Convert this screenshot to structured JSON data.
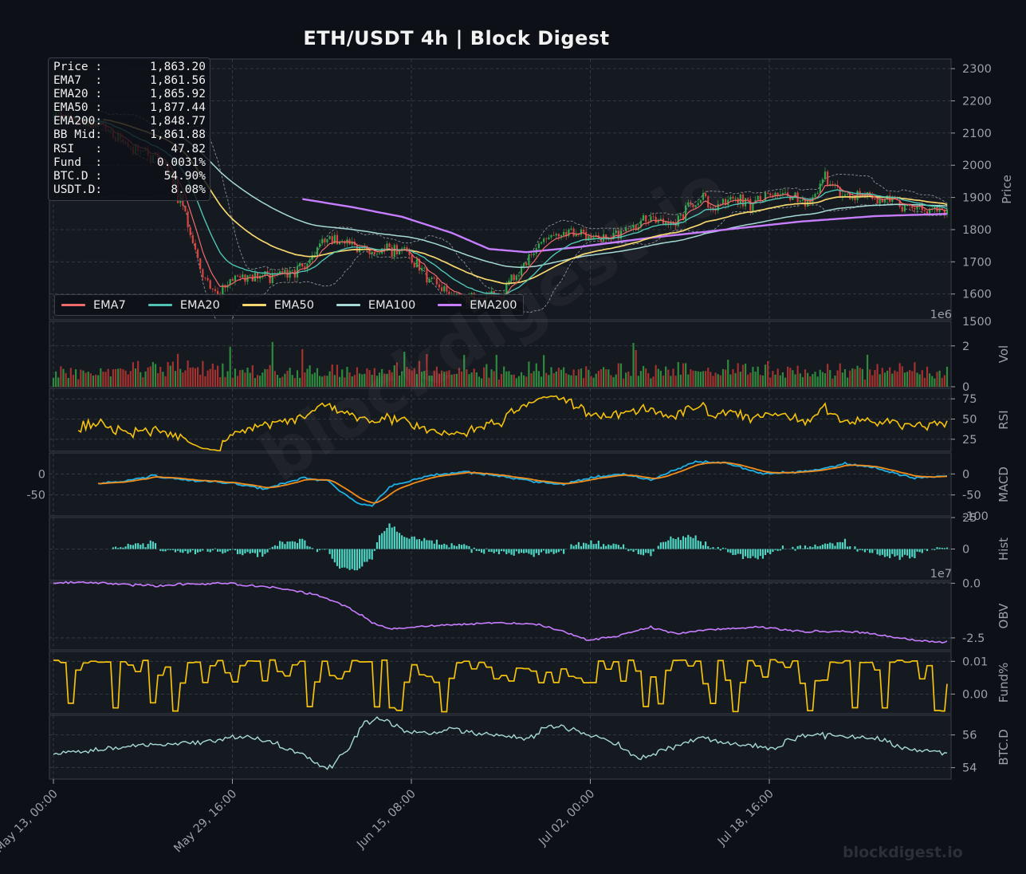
{
  "header": {
    "title": "ETH/USDT  4h  |  Block Digest"
  },
  "infobox": [
    {
      "label": "Price :",
      "value": "1,863.20"
    },
    {
      "label": "EMA7  :",
      "value": "1,861.56"
    },
    {
      "label": "EMA20 :",
      "value": "1,865.92"
    },
    {
      "label": "EMA50 :",
      "value": "1,877.44"
    },
    {
      "label": "EMA200:",
      "value": "1,848.77"
    },
    {
      "label": "BB Mid:",
      "value": "1,861.88"
    },
    {
      "label": "RSI   :",
      "value": "47.82"
    },
    {
      "label": "Fund  :",
      "value": "0.0031%"
    },
    {
      "label": "BTC.D :",
      "value": "54.90%"
    },
    {
      "label": "USDT.D:",
      "value": "8.08%"
    }
  ],
  "legend": [
    {
      "name": "EMA7",
      "color": "#f06a6a"
    },
    {
      "name": "EMA20",
      "color": "#4fc4b4"
    },
    {
      "name": "EMA50",
      "color": "#f5d76e"
    },
    {
      "name": "EMA100",
      "color": "#a6dad6"
    },
    {
      "name": "EMA200",
      "color": "#c77dff"
    }
  ],
  "watermark": "blockdigest.io",
  "brand": "blockdigest.io",
  "chart_data": {
    "type": "line",
    "x_ticks": [
      "May 13, 00:00",
      "May 29, 16:00",
      "Jun 15, 08:00",
      "Jul 02, 00:00",
      "Jul 18, 16:00"
    ],
    "panels": [
      {
        "name": "price",
        "ylabel": "Price",
        "ylim": [
          1520,
          2330
        ],
        "ticks": [
          1600,
          1700,
          1800,
          1900,
          2000,
          2100,
          2200,
          2300
        ],
        "close_anchors": [
          [
            0,
            2150
          ],
          [
            20,
            2120
          ],
          [
            35,
            2040
          ],
          [
            44,
            2010
          ],
          [
            52,
            1880
          ],
          [
            60,
            1650
          ],
          [
            66,
            1600
          ],
          [
            75,
            1660
          ],
          [
            85,
            1650
          ],
          [
            100,
            1680
          ],
          [
            110,
            1780
          ],
          [
            120,
            1750
          ],
          [
            130,
            1730
          ],
          [
            142,
            1730
          ],
          [
            150,
            1650
          ],
          [
            160,
            1600
          ],
          [
            170,
            1580
          ],
          [
            180,
            1600
          ],
          [
            190,
            1700
          ],
          [
            200,
            1780
          ],
          [
            210,
            1790
          ],
          [
            220,
            1770
          ],
          [
            230,
            1800
          ],
          [
            240,
            1830
          ],
          [
            250,
            1820
          ],
          [
            260,
            1900
          ],
          [
            264,
            1860
          ],
          [
            272,
            1900
          ],
          [
            280,
            1880
          ],
          [
            290,
            1920
          ],
          [
            298,
            1900
          ],
          [
            304,
            1890
          ],
          [
            310,
            1960
          ],
          [
            318,
            1900
          ],
          [
            330,
            1900
          ],
          [
            340,
            1880
          ],
          [
            350,
            1860
          ],
          [
            359,
            1863
          ]
        ],
        "ema200_anchors": [
          [
            100,
            1895
          ],
          [
            120,
            1870
          ],
          [
            140,
            1840
          ],
          [
            160,
            1790
          ],
          [
            175,
            1740
          ],
          [
            190,
            1730
          ],
          [
            210,
            1745
          ],
          [
            240,
            1775
          ],
          [
            270,
            1800
          ],
          [
            300,
            1825
          ],
          [
            330,
            1842
          ],
          [
            359,
            1849
          ]
        ],
        "last": {
          "price": 1863.2,
          "ema7": 1861.56,
          "ema20": 1865.92,
          "ema50": 1877.44,
          "ema200": 1848.77,
          "bb_mid": 1861.88
        },
        "series": [
          {
            "name": "EMA7"
          },
          {
            "name": "EMA20"
          },
          {
            "name": "EMA50"
          },
          {
            "name": "EMA100"
          },
          {
            "name": "EMA200"
          }
        ]
      },
      {
        "name": "volume",
        "ylabel": "Vol",
        "ylim": [
          0,
          3.2
        ],
        "ticks": [
          0,
          2
        ],
        "offset_text": "1e6",
        "peak_tick": "1500"
      },
      {
        "name": "rsi",
        "ylabel": "RSI",
        "ylim": [
          10,
          88
        ],
        "ticks": [
          25,
          50,
          75
        ],
        "last": 47.82
      },
      {
        "name": "macd",
        "ylabel": "MACD",
        "ylim": [
          -100,
          50
        ],
        "ticks": [
          -50,
          0
        ],
        "extra_tick": "-100",
        "anchors": [
          [
            10,
            -25
          ],
          [
            25,
            -20
          ],
          [
            40,
            -5
          ],
          [
            55,
            -15
          ],
          [
            70,
            -20
          ],
          [
            85,
            -35
          ],
          [
            100,
            -10
          ],
          [
            110,
            -15
          ],
          [
            115,
            -40
          ],
          [
            122,
            -70
          ],
          [
            128,
            -75
          ],
          [
            135,
            -30
          ],
          [
            150,
            -5
          ],
          [
            165,
            5
          ],
          [
            180,
            -5
          ],
          [
            195,
            -20
          ],
          [
            205,
            -25
          ],
          [
            215,
            -10
          ],
          [
            228,
            0
          ],
          [
            240,
            -15
          ],
          [
            250,
            10
          ],
          [
            258,
            30
          ],
          [
            270,
            25
          ],
          [
            285,
            0
          ],
          [
            298,
            5
          ],
          [
            308,
            10
          ],
          [
            318,
            25
          ],
          [
            330,
            15
          ],
          [
            345,
            -10
          ],
          [
            359,
            -5
          ]
        ]
      },
      {
        "name": "hist",
        "ylabel": "Hist",
        "ylim": [
          -25,
          25
        ],
        "ticks": [
          0,
          25
        ],
        "offset_text": "1e7"
      },
      {
        "name": "obv",
        "ylabel": "OBV",
        "ylim": [
          -3.05,
          0.05
        ],
        "ticks": [
          0.0,
          -2.5
        ],
        "anchors": [
          [
            0,
            0
          ],
          [
            12,
            0.05
          ],
          [
            25,
            -0.05
          ],
          [
            40,
            -0.1
          ],
          [
            55,
            -0.05
          ],
          [
            70,
            0
          ],
          [
            80,
            -0.1
          ],
          [
            95,
            -0.3
          ],
          [
            105,
            -0.5
          ],
          [
            112,
            -0.8
          ],
          [
            120,
            -1.2
          ],
          [
            128,
            -1.8
          ],
          [
            135,
            -2.1
          ],
          [
            145,
            -2.0
          ],
          [
            160,
            -1.9
          ],
          [
            180,
            -1.8
          ],
          [
            195,
            -1.9
          ],
          [
            205,
            -2.2
          ],
          [
            215,
            -2.6
          ],
          [
            225,
            -2.45
          ],
          [
            240,
            -2.0
          ],
          [
            250,
            -2.3
          ],
          [
            265,
            -2.1
          ],
          [
            285,
            -2.0
          ],
          [
            300,
            -2.2
          ],
          [
            315,
            -2.2
          ],
          [
            330,
            -2.3
          ],
          [
            345,
            -2.6
          ],
          [
            359,
            -2.7
          ]
        ]
      },
      {
        "name": "funding",
        "ylabel": "Fund%",
        "ylim": [
          -0.006,
          0.013
        ],
        "ticks": [
          0.0,
          0.01
        ],
        "last": 0.0031
      },
      {
        "name": "btc_dominance",
        "ylabel": "BTC.D",
        "ylim": [
          53.3,
          57.2
        ],
        "ticks": [
          54,
          56
        ],
        "last": 54.9,
        "anchors": [
          [
            0,
            54.7
          ],
          [
            10,
            55.0
          ],
          [
            30,
            55.3
          ],
          [
            60,
            55.6
          ],
          [
            75,
            55.9
          ],
          [
            90,
            55.4
          ],
          [
            100,
            54.8
          ],
          [
            105,
            54.3
          ],
          [
            110,
            53.9
          ],
          [
            118,
            55.0
          ],
          [
            125,
            56.8
          ],
          [
            132,
            57.0
          ],
          [
            140,
            56.3
          ],
          [
            150,
            56.1
          ],
          [
            160,
            56.4
          ],
          [
            170,
            56.1
          ],
          [
            180,
            56.0
          ],
          [
            190,
            55.7
          ],
          [
            200,
            56.6
          ],
          [
            210,
            56.3
          ],
          [
            225,
            55.6
          ],
          [
            235,
            54.5
          ],
          [
            245,
            55.1
          ],
          [
            260,
            55.8
          ],
          [
            275,
            55.4
          ],
          [
            290,
            55.2
          ],
          [
            300,
            55.9
          ],
          [
            315,
            56.0
          ],
          [
            330,
            55.8
          ],
          [
            345,
            55.1
          ],
          [
            359,
            54.9
          ]
        ]
      }
    ]
  }
}
